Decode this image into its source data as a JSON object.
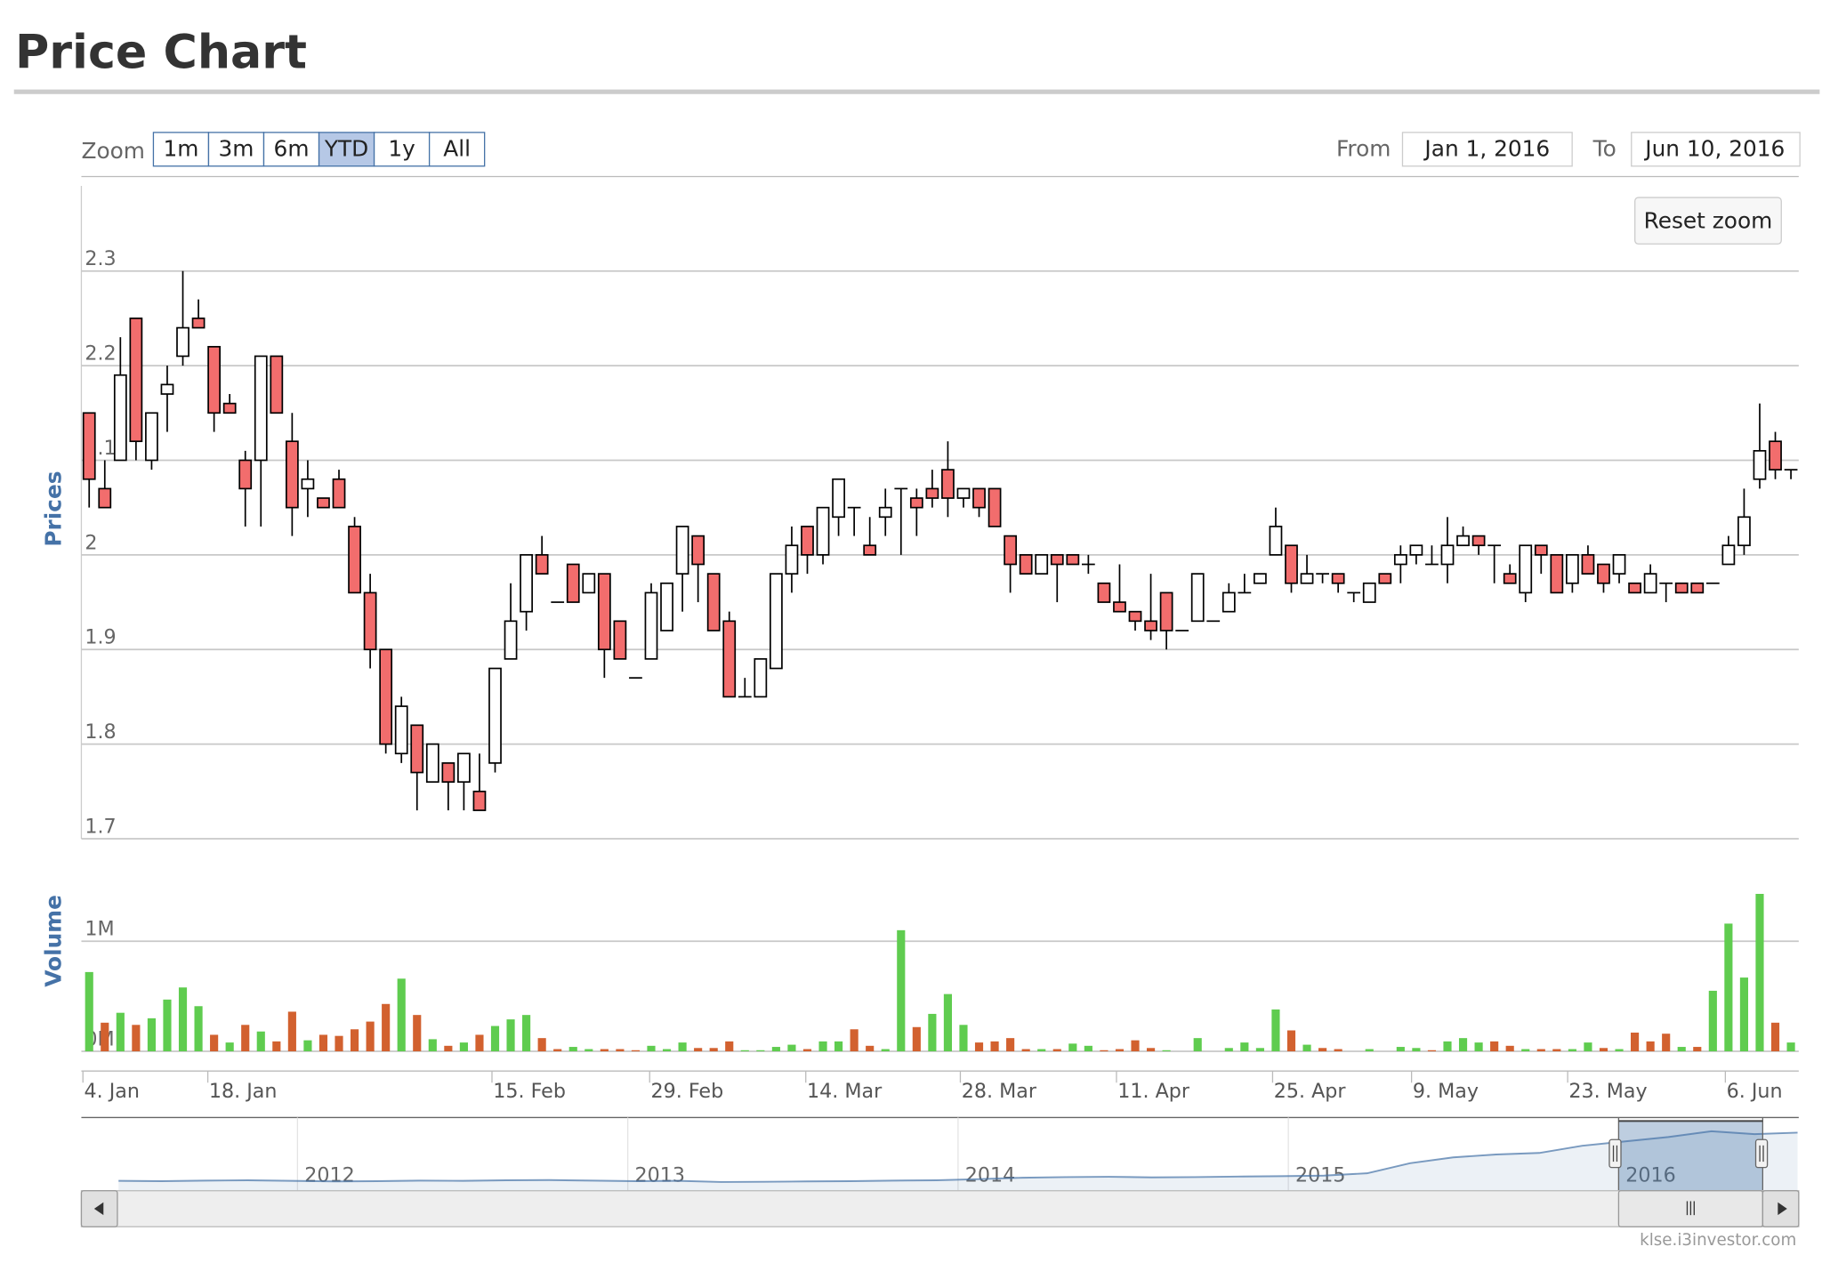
{
  "header": {
    "title": "Price Chart"
  },
  "controls": {
    "zoom_label": "Zoom",
    "zoom_buttons": [
      "1m",
      "3m",
      "6m",
      "YTD",
      "1y",
      "All"
    ],
    "selected_button": "YTD",
    "from_label": "From",
    "from_value": "Jan 1, 2016",
    "to_label": "To",
    "to_value": "Jun 10, 2016",
    "reset_zoom": "Reset zoom"
  },
  "chart_data": {
    "type": "candlestick",
    "y_axis_title": "Prices",
    "grid": true,
    "ylim": [
      1.7,
      2.39
    ],
    "yticks": [
      1.7,
      1.8,
      1.9,
      2,
      2.1,
      2.2,
      2.3
    ],
    "xlim": [
      -0.5,
      109.5
    ],
    "xticks": [
      {
        "value": -0.4,
        "label": "4. Jan"
      },
      {
        "value": 7.6,
        "label": "18. Jan"
      },
      {
        "value": 25.8,
        "label": "15. Feb"
      },
      {
        "value": 35.9,
        "label": "29. Feb"
      },
      {
        "value": 45.9,
        "label": "14. Mar"
      },
      {
        "value": 55.8,
        "label": "28. Mar"
      },
      {
        "value": 65.8,
        "label": "11. Apr"
      },
      {
        "value": 75.8,
        "label": "25. Apr"
      },
      {
        "value": 84.7,
        "label": "9. May"
      },
      {
        "value": 94.7,
        "label": "23. May"
      },
      {
        "value": 104.8,
        "label": "6. Jun"
      }
    ],
    "up_color": "#ffffff",
    "down_color": "#f26d6d",
    "open": [
      2.15,
      2.07,
      2.1,
      2.25,
      2.1,
      2.17,
      2.21,
      2.25,
      2.22,
      2.16,
      2.1,
      2.1,
      2.21,
      2.12,
      2.07,
      2.06,
      2.08,
      2.03,
      1.96,
      1.9,
      1.79,
      1.82,
      1.76,
      1.78,
      1.76,
      1.75,
      1.78,
      1.89,
      1.94,
      2.0,
      1.95,
      1.99,
      1.96,
      1.98,
      1.93,
      1.87,
      1.89,
      1.92,
      1.98,
      2.02,
      1.98,
      1.93,
      1.85,
      1.85,
      1.88,
      1.98,
      2.03,
      2.0,
      2.04,
      2.05,
      2.01,
      2.04,
      2.07,
      2.06,
      2.07,
      2.09,
      2.06,
      2.07,
      2.07,
      2.02,
      2.0,
      1.98,
      2.0,
      2.0,
      1.99,
      1.97,
      1.95,
      1.94,
      1.93,
      1.96,
      1.92,
      1.93,
      1.93,
      1.94,
      1.96,
      1.97,
      2.0,
      2.01,
      1.97,
      1.98,
      1.98,
      1.96,
      1.95,
      1.98,
      1.99,
      2.0,
      1.99,
      1.99,
      2.01,
      2.02,
      2.01,
      1.98,
      1.96,
      2.01,
      2.0,
      1.97,
      2.0,
      1.99,
      1.98,
      1.97,
      1.96,
      1.97,
      1.97,
      1.97,
      1.97,
      1.99,
      2.01,
      2.08,
      2.12,
      2.09
    ],
    "high": [
      2.15,
      2.1,
      2.23,
      2.25,
      2.15,
      2.2,
      2.3,
      2.27,
      2.22,
      2.17,
      2.11,
      2.21,
      2.21,
      2.15,
      2.1,
      2.06,
      2.09,
      2.04,
      1.98,
      1.9,
      1.85,
      1.82,
      1.8,
      1.78,
      1.79,
      1.79,
      1.88,
      1.97,
      2.0,
      2.02,
      1.95,
      1.99,
      1.98,
      1.98,
      1.93,
      1.87,
      1.97,
      1.97,
      2.03,
      2.02,
      1.98,
      1.94,
      1.87,
      1.89,
      1.98,
      2.03,
      2.03,
      2.05,
      2.08,
      2.05,
      2.04,
      2.07,
      2.07,
      2.07,
      2.09,
      2.12,
      2.07,
      2.07,
      2.07,
      2.02,
      2.0,
      2.0,
      2.0,
      2.0,
      2.0,
      1.97,
      1.99,
      1.94,
      1.98,
      1.96,
      1.92,
      1.98,
      1.93,
      1.97,
      1.98,
      1.98,
      2.05,
      2.01,
      2.0,
      1.98,
      1.98,
      1.96,
      1.97,
      1.98,
      2.01,
      2.01,
      2.01,
      2.04,
      2.03,
      2.02,
      2.01,
      1.99,
      2.01,
      2.01,
      2.0,
      2.0,
      2.01,
      1.99,
      2.0,
      1.97,
      1.99,
      1.97,
      1.97,
      1.97,
      1.97,
      2.02,
      2.07,
      2.16,
      2.13,
      2.09
    ],
    "low": [
      2.05,
      2.05,
      2.1,
      2.1,
      2.09,
      2.13,
      2.2,
      2.24,
      2.13,
      2.15,
      2.03,
      2.03,
      2.15,
      2.02,
      2.04,
      2.05,
      2.05,
      1.96,
      1.88,
      1.79,
      1.78,
      1.73,
      1.76,
      1.73,
      1.73,
      1.73,
      1.77,
      1.89,
      1.92,
      1.98,
      1.95,
      1.95,
      1.96,
      1.87,
      1.89,
      1.87,
      1.89,
      1.92,
      1.94,
      1.95,
      1.92,
      1.85,
      1.85,
      1.85,
      1.88,
      1.96,
      1.98,
      1.99,
      2.02,
      2.02,
      2.0,
      2.02,
      2.0,
      2.02,
      2.05,
      2.04,
      2.05,
      2.04,
      2.03,
      1.96,
      1.98,
      1.98,
      1.95,
      1.99,
      1.98,
      1.95,
      1.94,
      1.92,
      1.91,
      1.9,
      1.92,
      1.93,
      1.93,
      1.94,
      1.96,
      1.97,
      2.0,
      1.96,
      1.97,
      1.97,
      1.96,
      1.95,
      1.95,
      1.97,
      1.97,
      1.99,
      1.99,
      1.97,
      2.01,
      2.0,
      1.97,
      1.97,
      1.95,
      1.98,
      1.96,
      1.96,
      1.98,
      1.96,
      1.97,
      1.96,
      1.96,
      1.95,
      1.96,
      1.96,
      1.97,
      1.99,
      2.0,
      2.07,
      2.08,
      2.08
    ],
    "close": [
      2.08,
      2.05,
      2.19,
      2.12,
      2.15,
      2.18,
      2.24,
      2.24,
      2.15,
      2.15,
      2.07,
      2.21,
      2.15,
      2.05,
      2.08,
      2.05,
      2.05,
      1.96,
      1.9,
      1.8,
      1.84,
      1.77,
      1.8,
      1.76,
      1.79,
      1.73,
      1.88,
      1.93,
      2.0,
      1.98,
      1.95,
      1.95,
      1.98,
      1.9,
      1.89,
      1.87,
      1.96,
      1.97,
      2.03,
      1.99,
      1.92,
      1.85,
      1.85,
      1.89,
      1.98,
      2.01,
      2.0,
      2.05,
      2.08,
      2.05,
      2.0,
      2.05,
      2.07,
      2.05,
      2.06,
      2.06,
      2.07,
      2.05,
      2.03,
      1.99,
      1.98,
      2.0,
      1.99,
      1.99,
      1.99,
      1.95,
      1.94,
      1.93,
      1.92,
      1.92,
      1.92,
      1.98,
      1.93,
      1.96,
      1.96,
      1.98,
      2.03,
      1.97,
      1.98,
      1.98,
      1.97,
      1.96,
      1.97,
      1.97,
      2.0,
      2.01,
      1.99,
      2.01,
      2.02,
      2.01,
      2.01,
      1.97,
      2.01,
      2.0,
      1.96,
      2.0,
      1.98,
      1.97,
      2.0,
      1.96,
      1.98,
      1.97,
      1.96,
      1.96,
      1.97,
      2.01,
      2.04,
      2.11,
      2.09,
      2.09
    ],
    "volume": {
      "axis_title": "Volume",
      "ylim": [
        0,
        1530000
      ],
      "yticks": [
        {
          "value": 0,
          "label": "0M"
        },
        {
          "value": 1000000,
          "label": "1M"
        }
      ],
      "values": [
        720000,
        260000,
        350000,
        240000,
        300000,
        470000,
        580000,
        410000,
        150000,
        80000,
        240000,
        180000,
        90000,
        360000,
        100000,
        150000,
        140000,
        200000,
        270000,
        430000,
        660000,
        330000,
        110000,
        50000,
        80000,
        150000,
        230000,
        290000,
        330000,
        120000,
        20000,
        40000,
        20000,
        20000,
        20000,
        10000,
        50000,
        20000,
        80000,
        30000,
        30000,
        90000,
        10000,
        10000,
        40000,
        60000,
        20000,
        90000,
        90000,
        200000,
        50000,
        20000,
        1100000,
        220000,
        340000,
        520000,
        240000,
        80000,
        90000,
        120000,
        20000,
        20000,
        20000,
        70000,
        50000,
        10000,
        20000,
        100000,
        30000,
        10000,
        0,
        120000,
        0,
        30000,
        80000,
        30000,
        380000,
        190000,
        60000,
        30000,
        20000,
        0,
        20000,
        0,
        40000,
        30000,
        10000,
        90000,
        120000,
        80000,
        90000,
        50000,
        20000,
        20000,
        20000,
        20000,
        80000,
        30000,
        20000,
        170000,
        90000,
        160000,
        40000,
        40000,
        550000,
        1160000,
        670000,
        1430000,
        260000,
        80000
      ],
      "colors": [
        "#5fcc4f",
        "#d2612f",
        "#5fcc4f",
        "#d2612f",
        "#5fcc4f",
        "#5fcc4f",
        "#5fcc4f",
        "#5fcc4f",
        "#d2612f",
        "#5fcc4f",
        "#d2612f",
        "#5fcc4f",
        "#d2612f",
        "#d2612f",
        "#5fcc4f",
        "#d2612f",
        "#d2612f",
        "#d2612f",
        "#d2612f",
        "#d2612f",
        "#5fcc4f",
        "#d2612f",
        "#5fcc4f",
        "#d2612f",
        "#5fcc4f",
        "#d2612f",
        "#5fcc4f",
        "#5fcc4f",
        "#5fcc4f",
        "#d2612f",
        "#d2612f",
        "#5fcc4f",
        "#5fcc4f",
        "#d2612f",
        "#d2612f",
        "#d2612f",
        "#5fcc4f",
        "#5fcc4f",
        "#5fcc4f",
        "#d2612f",
        "#d2612f",
        "#d2612f",
        "#5fcc4f",
        "#5fcc4f",
        "#5fcc4f",
        "#5fcc4f",
        "#d2612f",
        "#5fcc4f",
        "#5fcc4f",
        "#d2612f",
        "#d2612f",
        "#5fcc4f",
        "#5fcc4f",
        "#d2612f",
        "#5fcc4f",
        "#5fcc4f",
        "#5fcc4f",
        "#d2612f",
        "#d2612f",
        "#d2612f",
        "#d2612f",
        "#5fcc4f",
        "#d2612f",
        "#5fcc4f",
        "#5fcc4f",
        "#d2612f",
        "#d2612f",
        "#d2612f",
        "#d2612f",
        "#5fcc4f",
        "#5fcc4f",
        "#5fcc4f",
        "#5fcc4f",
        "#5fcc4f",
        "#5fcc4f",
        "#5fcc4f",
        "#5fcc4f",
        "#d2612f",
        "#5fcc4f",
        "#d2612f",
        "#d2612f",
        "#5fcc4f",
        "#5fcc4f",
        "#5fcc4f",
        "#5fcc4f",
        "#5fcc4f",
        "#d2612f",
        "#5fcc4f",
        "#5fcc4f",
        "#5fcc4f",
        "#d2612f",
        "#d2612f",
        "#5fcc4f",
        "#d2612f",
        "#d2612f",
        "#5fcc4f",
        "#5fcc4f",
        "#d2612f",
        "#5fcc4f",
        "#d2612f",
        "#d2612f",
        "#d2612f",
        "#5fcc4f",
        "#d2612f",
        "#5fcc4f",
        "#5fcc4f",
        "#5fcc4f",
        "#5fcc4f",
        "#d2612f",
        "#5fcc4f"
      ]
    },
    "navigator": {
      "labels": [
        "2012",
        "2013",
        "2014",
        "2015",
        "2016"
      ],
      "ylim": [
        0,
        2.4
      ],
      "color": "#4572a7",
      "values": [
        0.34,
        0.33,
        0.35,
        0.36,
        0.34,
        0.32,
        0.33,
        0.35,
        0.34,
        0.36,
        0.37,
        0.35,
        0.33,
        0.34,
        0.3,
        0.31,
        0.32,
        0.33,
        0.35,
        0.36,
        0.4,
        0.45,
        0.47,
        0.48,
        0.46,
        0.47,
        0.49,
        0.5,
        0.52,
        0.6,
        0.95,
        1.15,
        1.25,
        1.3,
        1.55,
        1.7,
        1.85,
        2.05,
        1.95,
        2.0
      ]
    }
  },
  "credit": "klse.i3investor.com"
}
